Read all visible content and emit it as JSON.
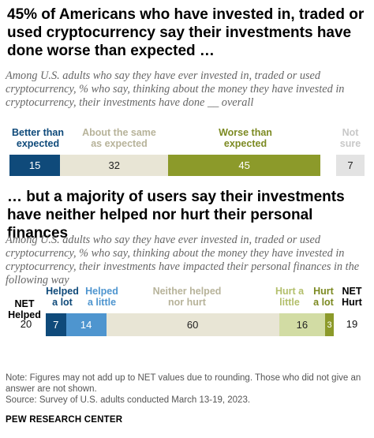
{
  "title1": "45% of Americans who have invested in, traded or used cryptocurrency say their investments have done worse than expected …",
  "subtitle1": "Among U.S. adults who say they have ever invested in, traded or used cryptocurrency, % who say, thinking about the money they have invested in cryptocurrency, their investments have done __ overall",
  "title2": "… but a majority of users say their investments have neither helped nor hurt their personal finances",
  "subtitle2": "Among U.S. adults who say they have ever invested in, traded or used cryptocurrency, % who say, thinking about the money they have invested in cryptocurrency, their investments have impacted their personal finances in the following way",
  "note": "Note: Figures may not add up to NET values due to rounding. Those who did not give an answer are not shown.",
  "source": "Source: Survey of U.S. adults conducted March 13-19, 2023.",
  "brand": "PEW RESEARCH CENTER",
  "chart_data": [
    {
      "type": "bar",
      "orientation": "horizontal-stacked",
      "categories": [
        "Better than expected",
        "About the same as expected",
        "Worse than expected",
        "Not sure"
      ],
      "values": [
        15,
        32,
        45,
        7
      ],
      "colors": [
        "#0f4a7a",
        "#e8e5d5",
        "#8c9a2a",
        "#e3e3e3"
      ],
      "label_colors": [
        "#0f4a7a",
        "#b7b39a",
        "#7c8a22",
        "#c8c8c8"
      ]
    },
    {
      "type": "bar",
      "orientation": "horizontal-stacked",
      "categories": [
        "Helped a lot",
        "Helped a little",
        "Neither helped nor hurt",
        "Hurt a little",
        "Hurt a lot"
      ],
      "values": [
        7,
        14,
        60,
        16,
        3
      ],
      "colors": [
        "#0f4a7a",
        "#4e95cf",
        "#e8e5d5",
        "#d2dca4",
        "#8c9a2a"
      ],
      "label_colors": [
        "#0f4a7a",
        "#4e95cf",
        "#b7b39a",
        "#b3bf6c",
        "#7c8a22"
      ],
      "net": {
        "helped_label": "NET Helped",
        "helped": 20,
        "hurt_label": "NET Hurt",
        "hurt": 19
      }
    }
  ]
}
